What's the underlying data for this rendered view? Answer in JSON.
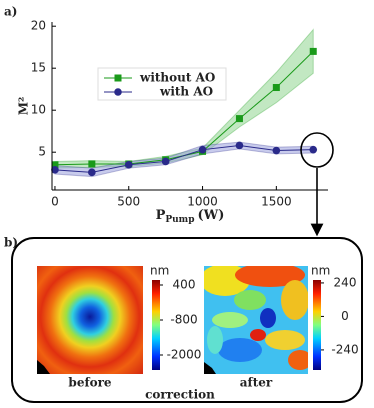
{
  "chart_data": {
    "type": "line",
    "panel_label": "a)",
    "ylabel": "M²",
    "xlabel": {
      "main": "P",
      "sub": "Pump",
      "unit": "(W)"
    },
    "x": [
      0,
      250,
      500,
      750,
      1000,
      1250,
      1500,
      1750
    ],
    "series": [
      {
        "name": "without AO",
        "color": "#1a9a1a",
        "band_color": "#8fd68f",
        "marker": "square",
        "values": [
          3.5,
          3.6,
          3.6,
          4.1,
          5.1,
          9.0,
          12.7,
          17.0
        ],
        "errors": [
          0.4,
          0.4,
          0.3,
          0.4,
          0.4,
          1.0,
          1.8,
          2.6
        ]
      },
      {
        "name": "with AO",
        "color": "#2a2a8a",
        "band_color": "#9aa0dc",
        "marker": "circle",
        "values": [
          2.9,
          2.6,
          3.5,
          3.9,
          5.3,
          5.8,
          5.2,
          5.3
        ],
        "errors": [
          0.5,
          0.5,
          0.4,
          0.4,
          0.5,
          0.4,
          0.4,
          0.4
        ]
      }
    ],
    "xlim": [
      -20,
      1850
    ],
    "xticks": [
      0,
      500,
      1000,
      1500
    ],
    "ylim": [
      0.5,
      20.5
    ],
    "yticks": [
      5,
      10,
      15,
      20
    ]
  },
  "panel_b": {
    "panel_label": "b)",
    "before": {
      "label": "before",
      "unit": "nm",
      "clim": [
        571,
        -2514
      ],
      "ticks": [
        400,
        -800,
        -2000
      ]
    },
    "after": {
      "label": "after",
      "unit": "nm",
      "clim": [
        261,
        -384
      ],
      "ticks": [
        240,
        0,
        -240
      ]
    },
    "caption": "correction"
  }
}
